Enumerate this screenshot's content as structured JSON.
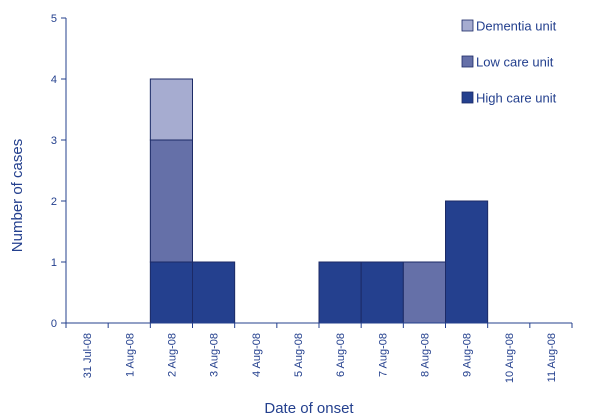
{
  "chart_data": {
    "type": "bar",
    "stacked": true,
    "categories": [
      "31 Jul-08",
      "1 Aug-08",
      "2 Aug-08",
      "3 Aug-08",
      "4 Aug-08",
      "5 Aug-08",
      "6 Aug-08",
      "7 Aug-08",
      "8 Aug-08",
      "9 Aug-08",
      "10 Aug-08",
      "11 Aug-08"
    ],
    "series": [
      {
        "name": "High care unit",
        "color": "#24408e",
        "values": [
          0,
          0,
          1,
          1,
          0,
          0,
          1,
          1,
          0,
          2,
          0,
          0
        ]
      },
      {
        "name": "Low care unit",
        "color": "#6570a8",
        "values": [
          0,
          0,
          2,
          0,
          0,
          0,
          0,
          0,
          1,
          0,
          0,
          0
        ]
      },
      {
        "name": "Dementia unit",
        "color": "#a6acd0",
        "values": [
          0,
          0,
          1,
          0,
          0,
          0,
          0,
          0,
          0,
          0,
          0,
          0
        ]
      }
    ],
    "legend_order": [
      "Dementia unit",
      "Low care unit",
      "High care unit"
    ],
    "legend_position": "top-right",
    "xlabel": "Date of onset",
    "ylabel": "Number of cases",
    "ylim": [
      0,
      5
    ],
    "yticks": [
      0,
      1,
      2,
      3,
      4,
      5
    ],
    "grid": false,
    "axis_color": "#24408e"
  }
}
